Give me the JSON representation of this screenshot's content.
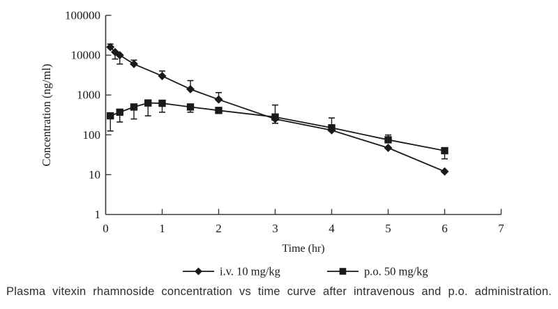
{
  "chart_data": {
    "type": "line",
    "title": "",
    "xlabel": "Time (hr)",
    "ylabel": "Concentration (ng/ml)",
    "x_ticks": [
      0,
      1,
      2,
      3,
      4,
      5,
      6,
      7
    ],
    "xlim": [
      0,
      7
    ],
    "y_scale": "log",
    "y_ticks": [
      1,
      10,
      100,
      1000,
      10000,
      100000
    ],
    "ylim": [
      1,
      100000
    ],
    "grid": false,
    "legend_position": "bottom",
    "line_color": "#1a1a1a",
    "axis_color": "#3a3a3a",
    "series": [
      {
        "name": "i.v. 10 mg/kg",
        "marker": "diamond",
        "x": [
          0.083,
          0.167,
          0.25,
          0.5,
          1,
          1.5,
          2,
          3,
          4,
          5,
          6
        ],
        "y": [
          16000,
          12000,
          10000,
          6000,
          3000,
          1400,
          770,
          250,
          130,
          47,
          12
        ],
        "err_up_to": [
          19000,
          null,
          null,
          7500,
          4000,
          2300,
          1150,
          null,
          null,
          null,
          null
        ],
        "err_down_to": [
          null,
          8000,
          6000,
          null,
          null,
          null,
          null,
          195,
          null,
          null,
          null
        ]
      },
      {
        "name": "p.o. 50 mg/kg",
        "marker": "square",
        "x": [
          0.083,
          0.25,
          0.5,
          0.75,
          1,
          1.5,
          2,
          3,
          4,
          5,
          6
        ],
        "y": [
          300,
          370,
          500,
          630,
          620,
          500,
          410,
          280,
          150,
          75,
          40
        ],
        "err_up_to": [
          null,
          null,
          null,
          null,
          null,
          null,
          null,
          560,
          265,
          99,
          null
        ],
        "err_down_to": [
          125,
          210,
          250,
          300,
          370,
          370,
          null,
          null,
          null,
          null,
          25
        ]
      }
    ],
    "caption": "Plasma vitexin rhamnoside concentration vs time curve after intravenous and p.o. administration."
  }
}
